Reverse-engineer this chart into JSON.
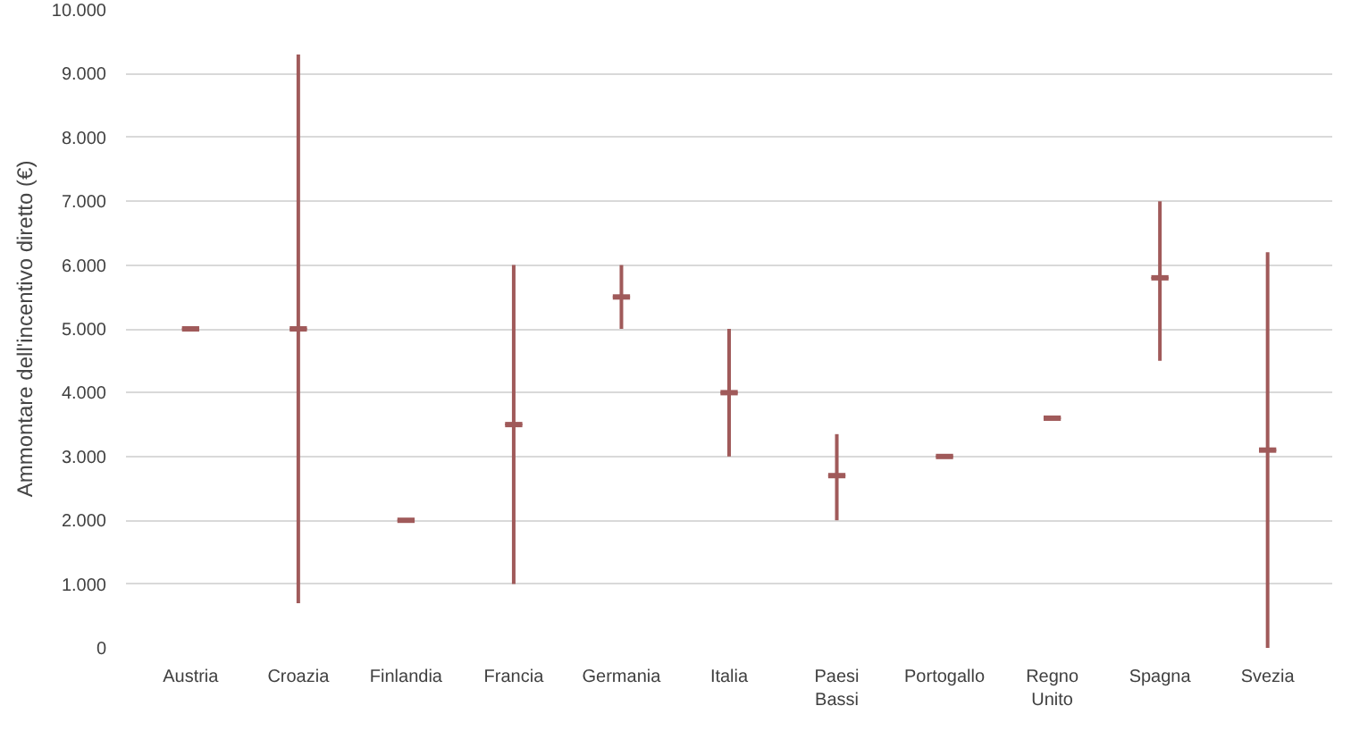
{
  "chart_data": {
    "type": "box",
    "ylabel": "Ammontare dell'incentivo diretto (€)",
    "categories": [
      "Austria",
      "Croazia",
      "Finlandia",
      "Francia",
      "Germania",
      "Italia",
      "Paesi Bassi",
      "Portogallo",
      "Regno Unito",
      "Spagna",
      "Svezia"
    ],
    "color": "#a05a5a",
    "grid": "y",
    "ylim": [
      0,
      10000
    ],
    "yticks": [
      0,
      {
        "value": 1000,
        "label": "1.000"
      },
      {
        "value": 2000,
        "label": "2.000"
      },
      {
        "value": 3000,
        "label": "3.000"
      },
      {
        "value": 4000,
        "label": "4.000"
      },
      {
        "value": 5000,
        "label": "5.000"
      },
      {
        "value": 6000,
        "label": "6.000"
      },
      {
        "value": 7000,
        "label": "7.000"
      },
      {
        "value": 8000,
        "label": "8.000"
      },
      {
        "value": 9000,
        "label": "9.000"
      },
      {
        "value": 10000,
        "label": "10.000"
      }
    ],
    "boxes": [
      {
        "low": 5000,
        "q1": 5000,
        "median": 5000,
        "q3": 5000,
        "high": 5000
      },
      {
        "low": 700,
        "q1": 5000,
        "median": 5000,
        "q3": 5000,
        "high": 9300
      },
      {
        "low": 2000,
        "q1": 2000,
        "median": 2000,
        "q3": 2000,
        "high": 2000
      },
      {
        "low": 1000,
        "q1": 3500,
        "median": 3500,
        "q3": 3500,
        "high": 6000
      },
      {
        "low": 5000,
        "q1": 5500,
        "median": 5500,
        "q3": 5500,
        "high": 6000
      },
      {
        "low": 3000,
        "q1": 4000,
        "median": 4000,
        "q3": 4000,
        "high": 5000
      },
      {
        "low": 2000,
        "q1": 2700,
        "median": 2700,
        "q3": 2700,
        "high": 3350
      },
      {
        "low": 3000,
        "q1": 3000,
        "median": 3000,
        "q3": 3000,
        "high": 3000
      },
      {
        "low": 3600,
        "q1": 3600,
        "median": 3600,
        "q3": 3600,
        "high": 3600
      },
      {
        "low": 4500,
        "q1": 5800,
        "median": 5800,
        "q3": 5800,
        "high": 7000
      },
      {
        "low": 0,
        "q1": 3100,
        "median": 3100,
        "q3": 3100,
        "high": 6200
      }
    ]
  }
}
